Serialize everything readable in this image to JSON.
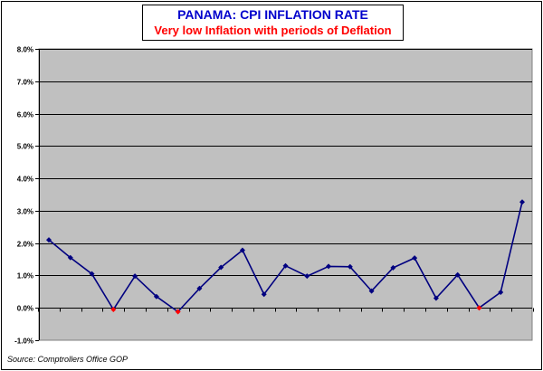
{
  "chart_data": {
    "type": "line",
    "title": "PANAMA: CPI INFLATION RATE",
    "subtitle": "Very low Inflation with periods of Deflation",
    "source": "Source: Comptrollers Office GOP",
    "xlabel": "",
    "ylabel": "",
    "ylim": [
      -1.0,
      8.0
    ],
    "yticks": [
      "8.0%",
      "7.0%",
      "6.0%",
      "5.0%",
      "4.0%",
      "3.0%",
      "2.0%",
      "1.0%",
      "0.0%",
      "-1.0%"
    ],
    "grid": true,
    "colors": {
      "line": "#000080",
      "point": "#000080",
      "negative_point": "#ff0000",
      "plot_bg": "#c0c0c0"
    },
    "series": [
      {
        "values": [
          2.1,
          1.55,
          1.05,
          -0.05,
          0.98,
          0.35,
          -0.12,
          0.6,
          1.25,
          1.78,
          0.42,
          1.3,
          0.98,
          1.28,
          1.27,
          0.52,
          1.24,
          1.54,
          0.3,
          1.02,
          0.0,
          0.48,
          3.27
        ]
      }
    ]
  }
}
